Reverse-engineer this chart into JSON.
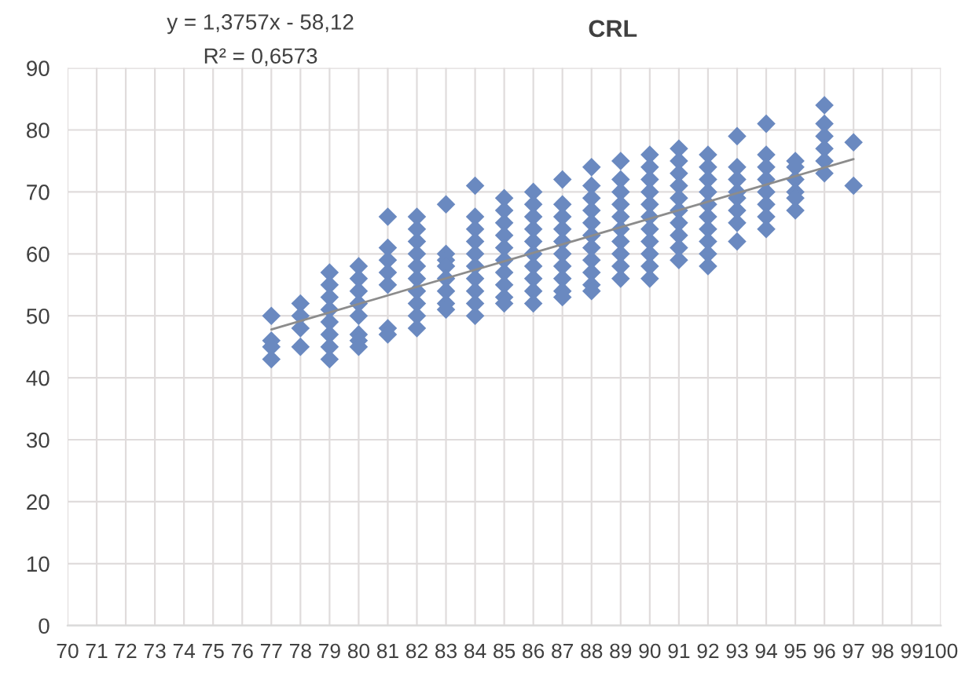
{
  "chart_data": {
    "type": "scatter",
    "title": "CRL",
    "annotations": [
      "y = 1,3757x - 58,12",
      "R² = 0,6573"
    ],
    "series": [
      {
        "color": "#6a89c0",
        "marker": "diamond",
        "x": [
          77,
          77,
          77,
          77,
          78,
          78,
          78,
          78,
          79,
          79,
          79,
          79,
          79,
          79,
          79,
          79,
          80,
          80,
          80,
          80,
          80,
          80,
          80,
          80,
          81,
          81,
          81,
          81,
          81,
          81,
          81,
          82,
          82,
          82,
          82,
          82,
          82,
          82,
          82,
          82,
          82,
          83,
          83,
          83,
          83,
          83,
          83,
          83,
          83,
          84,
          84,
          84,
          84,
          84,
          84,
          84,
          84,
          84,
          84,
          85,
          85,
          85,
          85,
          85,
          85,
          85,
          85,
          85,
          85,
          86,
          86,
          86,
          86,
          86,
          86,
          86,
          86,
          86,
          86,
          87,
          87,
          87,
          87,
          87,
          87,
          87,
          87,
          87,
          87,
          88,
          88,
          88,
          88,
          88,
          88,
          88,
          88,
          88,
          88,
          88,
          89,
          89,
          89,
          89,
          89,
          89,
          89,
          89,
          89,
          89,
          90,
          90,
          90,
          90,
          90,
          90,
          90,
          90,
          90,
          90,
          90,
          91,
          91,
          91,
          91,
          91,
          91,
          91,
          91,
          91,
          91,
          92,
          92,
          92,
          92,
          92,
          92,
          92,
          92,
          92,
          92,
          93,
          93,
          93,
          93,
          93,
          93,
          93,
          93,
          94,
          94,
          94,
          94,
          94,
          94,
          94,
          94,
          95,
          95,
          95,
          95,
          95,
          95,
          96,
          96,
          96,
          96,
          96,
          96,
          97,
          97
        ],
        "values": [
          50,
          46,
          45,
          43,
          52,
          50,
          48,
          45,
          57,
          55,
          53,
          51,
          49,
          47,
          45,
          43,
          58,
          56,
          54,
          52,
          50,
          47,
          46,
          45,
          66,
          61,
          59,
          57,
          55,
          48,
          47,
          66,
          64,
          62,
          60,
          58,
          56,
          54,
          52,
          50,
          48,
          68,
          60,
          59,
          58,
          56,
          54,
          52,
          51,
          71,
          66,
          64,
          62,
          60,
          58,
          56,
          54,
          52,
          50,
          69,
          67,
          65,
          63,
          61,
          59,
          57,
          55,
          53,
          52,
          70,
          68,
          66,
          64,
          62,
          60,
          58,
          56,
          54,
          52,
          72,
          68,
          66,
          64,
          62,
          60,
          58,
          56,
          54,
          53,
          74,
          71,
          69,
          67,
          65,
          63,
          61,
          59,
          57,
          55,
          54,
          75,
          72,
          70,
          68,
          66,
          64,
          62,
          60,
          58,
          56,
          76,
          74,
          72,
          70,
          68,
          66,
          64,
          62,
          60,
          58,
          56,
          77,
          75,
          73,
          71,
          69,
          67,
          65,
          63,
          61,
          59,
          76,
          74,
          72,
          70,
          68,
          66,
          64,
          62,
          60,
          58,
          79,
          74,
          72,
          70,
          69,
          67,
          65,
          62,
          81,
          76,
          74,
          72,
          70,
          68,
          66,
          64,
          75,
          74,
          72,
          70,
          69,
          67,
          84,
          81,
          79,
          77,
          75,
          73,
          78,
          71
        ]
      },
      {
        "type": "line",
        "color": "#8c8c8c",
        "x": [
          77,
          97
        ],
        "values": [
          47.8,
          75.3
        ]
      }
    ],
    "xlim": [
      70,
      100
    ],
    "xticks": [
      70,
      71,
      72,
      73,
      74,
      75,
      76,
      77,
      78,
      79,
      80,
      81,
      82,
      83,
      84,
      85,
      86,
      87,
      88,
      89,
      90,
      91,
      92,
      93,
      94,
      95,
      96,
      97,
      98,
      99,
      100
    ],
    "ylim": [
      0,
      90
    ],
    "yticks": [
      0,
      10,
      20,
      30,
      40,
      50,
      60,
      70,
      80,
      90
    ],
    "grid": true
  }
}
